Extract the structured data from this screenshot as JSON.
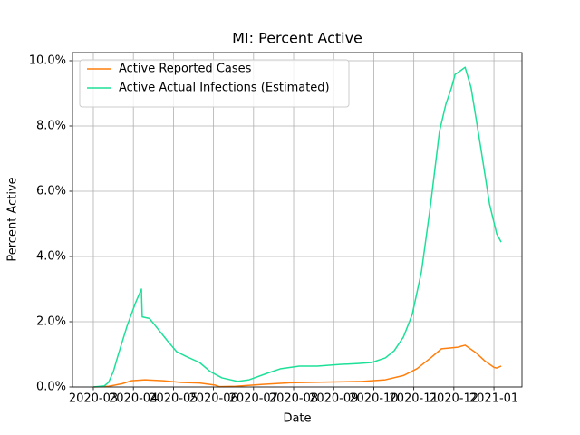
{
  "chart_data": {
    "type": "line",
    "title": "MI: Percent Active",
    "x_label": "Date",
    "y_label": "Percent Active",
    "xlim": [
      -0.52,
      10.7
    ],
    "ylim": [
      0,
      10.25
    ],
    "xticks": [
      {
        "value": 0,
        "label": "2020-03"
      },
      {
        "value": 1,
        "label": "2020-04"
      },
      {
        "value": 2,
        "label": "2020-05"
      },
      {
        "value": 3,
        "label": "2020-06"
      },
      {
        "value": 4,
        "label": "2020-07"
      },
      {
        "value": 5,
        "label": "2020-08"
      },
      {
        "value": 6,
        "label": "2020-09"
      },
      {
        "value": 7,
        "label": "2020-10"
      },
      {
        "value": 8,
        "label": "2020-11"
      },
      {
        "value": 9,
        "label": "2020-12"
      },
      {
        "value": 10,
        "label": "2021-01"
      }
    ],
    "yticks": [
      {
        "value": 0,
        "label": "0.0%"
      },
      {
        "value": 2,
        "label": "2.0%"
      },
      {
        "value": 4,
        "label": "4.0%"
      },
      {
        "value": 6,
        "label": "6.0%"
      },
      {
        "value": 8,
        "label": "8.0%"
      },
      {
        "value": 10,
        "label": "10.0%"
      }
    ],
    "grid": true,
    "legend": "upper left",
    "series": [
      {
        "name": "Active Reported Cases",
        "color": "#ff7f0e",
        "x": [
          0,
          0.38,
          0.72,
          0.95,
          1.29,
          1.74,
          2.19,
          2.65,
          3.03,
          3.14,
          3.55,
          4.23,
          4.91,
          5.81,
          6.72,
          7.29,
          7.74,
          8.08,
          8.42,
          8.69,
          8.87,
          9.1,
          9.28,
          9.55,
          9.77,
          10.0,
          10.07,
          10.18
        ],
        "values": [
          0,
          0.02,
          0.1,
          0.19,
          0.22,
          0.19,
          0.14,
          0.12,
          0.06,
          0.01,
          0.02,
          0.08,
          0.13,
          0.15,
          0.17,
          0.22,
          0.35,
          0.56,
          0.89,
          1.17,
          1.19,
          1.22,
          1.28,
          1.05,
          0.8,
          0.6,
          0.58,
          0.64
        ]
      },
      {
        "name": "Active Actual Infections (Estimated)",
        "color": "#1de098",
        "x": [
          0,
          0.27,
          0.38,
          0.5,
          0.61,
          0.84,
          1.06,
          1.2,
          1.22,
          1.4,
          1.56,
          1.86,
          2.08,
          2.31,
          2.65,
          2.92,
          3.21,
          3.6,
          3.89,
          4.34,
          4.68,
          5.14,
          5.59,
          6.15,
          6.61,
          6.95,
          7.29,
          7.51,
          7.74,
          7.96,
          8.19,
          8.42,
          8.64,
          8.8,
          8.94,
          9.03,
          9.16,
          9.28,
          9.43,
          9.66,
          9.89,
          10.07,
          10.18
        ],
        "values": [
          0,
          0.03,
          0.14,
          0.47,
          0.94,
          1.86,
          2.6,
          3.0,
          2.15,
          2.1,
          1.86,
          1.4,
          1.08,
          0.94,
          0.75,
          0.47,
          0.28,
          0.17,
          0.22,
          0.42,
          0.56,
          0.64,
          0.64,
          0.69,
          0.72,
          0.75,
          0.89,
          1.11,
          1.53,
          2.22,
          3.53,
          5.6,
          7.83,
          8.67,
          9.17,
          9.58,
          9.69,
          9.8,
          9.17,
          7.42,
          5.61,
          4.69,
          4.44
        ]
      }
    ]
  }
}
